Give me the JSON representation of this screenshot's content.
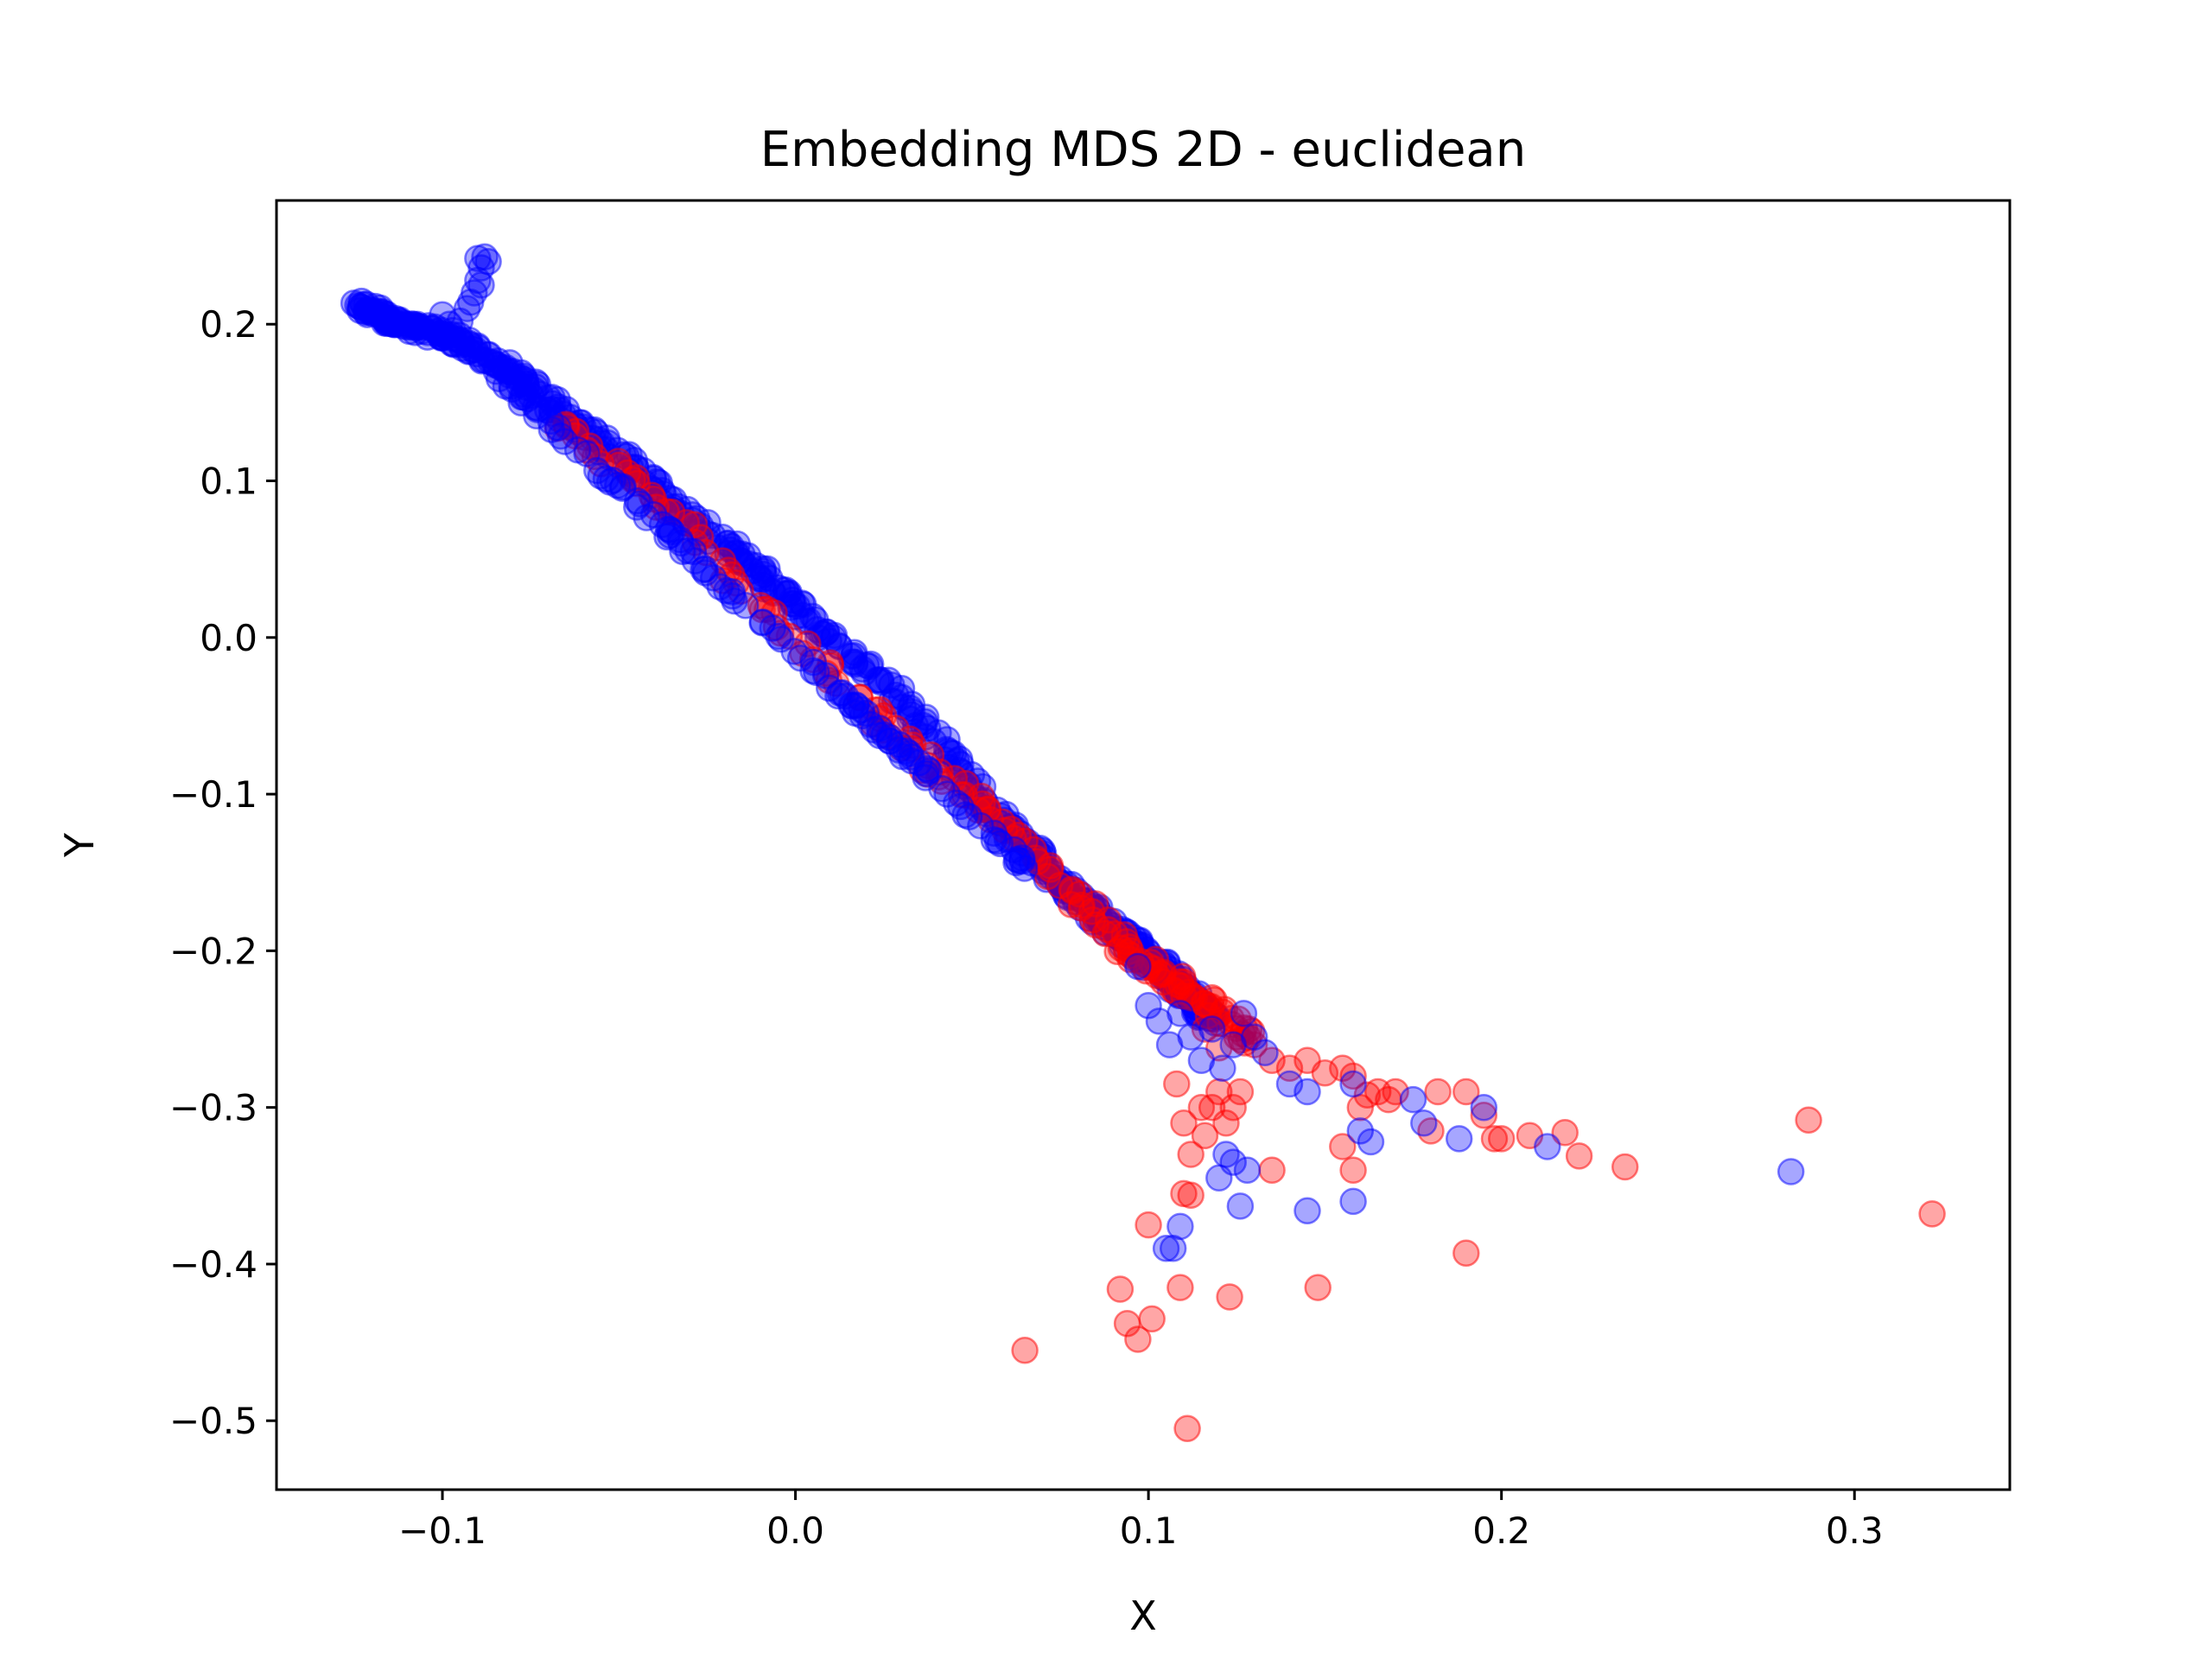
{
  "chart_data": {
    "type": "scatter",
    "title": "Embedding MDS 2D - euclidean",
    "xlabel": "X",
    "ylabel": "Y",
    "xlim": [
      -0.147,
      0.344
    ],
    "ylim": [
      -0.544,
      0.279
    ],
    "xticks": [
      -0.1,
      0.0,
      0.1,
      0.2,
      0.3
    ],
    "xtick_labels": [
      "−0.1",
      "0.0",
      "0.1",
      "0.2",
      "0.3"
    ],
    "yticks": [
      0.2,
      0.1,
      0.0,
      -0.1,
      -0.2,
      -0.3,
      -0.4,
      -0.5
    ],
    "ytick_labels": [
      "0.2",
      "0.1",
      "0.0",
      "−0.1",
      "−0.2",
      "−0.3",
      "−0.4",
      "−0.5"
    ],
    "grid": false,
    "series": [
      {
        "color": "#0000ff",
        "opacity": 0.35,
        "main_path": [
          [
            -0.124,
            0.212
          ],
          [
            -0.112,
            0.2
          ],
          [
            -0.095,
            0.19
          ],
          [
            -0.075,
            0.16
          ],
          [
            -0.05,
            0.115
          ],
          [
            -0.02,
            0.06
          ],
          [
            0.0,
            0.02
          ],
          [
            0.03,
            -0.04
          ],
          [
            0.055,
            -0.11
          ],
          [
            0.075,
            -0.155
          ],
          [
            0.09,
            -0.185
          ],
          [
            0.1,
            -0.205
          ],
          [
            0.11,
            -0.225
          ],
          [
            0.118,
            -0.245
          ]
        ],
        "points": [
          [
            -0.124,
            0.212
          ],
          [
            -0.12,
            0.209
          ],
          [
            -0.117,
            0.208
          ],
          [
            -0.113,
            0.201
          ],
          [
            -0.108,
            0.198
          ],
          [
            -0.104,
            0.199
          ],
          [
            -0.1,
            0.206
          ],
          [
            -0.098,
            0.2
          ],
          [
            -0.095,
            0.202
          ],
          [
            -0.093,
            0.21
          ],
          [
            -0.091,
            0.22
          ],
          [
            -0.09,
            0.228
          ],
          [
            -0.089,
            0.236
          ],
          [
            -0.09,
            0.242
          ],
          [
            -0.088,
            0.243
          ],
          [
            -0.087,
            0.24
          ],
          [
            -0.089,
            0.225
          ],
          [
            -0.092,
            0.214
          ],
          [
            -0.097,
            0.196
          ],
          [
            0.097,
            -0.21
          ],
          [
            0.1,
            -0.235
          ],
          [
            0.103,
            -0.245
          ],
          [
            0.106,
            -0.26
          ],
          [
            0.109,
            -0.24
          ],
          [
            0.112,
            -0.255
          ],
          [
            0.115,
            -0.27
          ],
          [
            0.118,
            -0.25
          ],
          [
            0.121,
            -0.275
          ],
          [
            0.124,
            -0.26
          ],
          [
            0.127,
            -0.24
          ],
          [
            0.13,
            -0.255
          ],
          [
            0.133,
            -0.265
          ],
          [
            0.12,
            -0.345
          ],
          [
            0.122,
            -0.33
          ],
          [
            0.124,
            -0.335
          ],
          [
            0.126,
            -0.363
          ],
          [
            0.128,
            -0.34
          ],
          [
            0.105,
            -0.39
          ],
          [
            0.107,
            -0.39
          ],
          [
            0.109,
            -0.376
          ],
          [
            0.14,
            -0.285
          ],
          [
            0.145,
            -0.29
          ],
          [
            0.145,
            -0.366
          ],
          [
            0.158,
            -0.36
          ],
          [
            0.158,
            -0.285
          ],
          [
            0.16,
            -0.315
          ],
          [
            0.163,
            -0.322
          ],
          [
            0.178,
            -0.31
          ],
          [
            0.175,
            -0.295
          ],
          [
            0.188,
            -0.32
          ],
          [
            0.195,
            -0.3
          ],
          [
            0.213,
            -0.325
          ],
          [
            0.282,
            -0.341
          ]
        ]
      },
      {
        "color": "#ff0000",
        "opacity": 0.35,
        "main_path": [
          [
            -0.065,
            0.136
          ],
          [
            -0.04,
            0.09
          ],
          [
            -0.01,
            0.018
          ],
          [
            0.02,
            -0.045
          ],
          [
            0.04,
            -0.085
          ],
          [
            0.06,
            -0.12
          ],
          [
            0.08,
            -0.17
          ],
          [
            0.095,
            -0.2
          ],
          [
            0.108,
            -0.22
          ],
          [
            0.12,
            -0.24
          ],
          [
            0.13,
            -0.26
          ]
        ],
        "points": [
          [
            -0.065,
            0.136
          ],
          [
            -0.05,
            0.11
          ],
          [
            -0.035,
            0.08
          ],
          [
            -0.018,
            0.04
          ],
          [
            -0.008,
            0.018
          ],
          [
            0.01,
            -0.018
          ],
          [
            0.025,
            -0.05
          ],
          [
            0.045,
            -0.09
          ],
          [
            0.065,
            -0.13
          ],
          [
            0.085,
            -0.17
          ],
          [
            0.095,
            -0.2
          ],
          [
            0.1,
            -0.21
          ],
          [
            0.104,
            -0.215
          ],
          [
            0.107,
            -0.225
          ],
          [
            0.11,
            -0.22
          ],
          [
            0.113,
            -0.23
          ],
          [
            0.116,
            -0.25
          ],
          [
            0.118,
            -0.23
          ],
          [
            0.12,
            -0.262
          ],
          [
            0.125,
            -0.255
          ],
          [
            0.13,
            -0.26
          ],
          [
            0.135,
            -0.27
          ],
          [
            0.14,
            -0.275
          ],
          [
            0.145,
            -0.27
          ],
          [
            0.15,
            -0.278
          ],
          [
            0.155,
            -0.275
          ],
          [
            0.158,
            -0.28
          ],
          [
            0.162,
            -0.292
          ],
          [
            0.165,
            -0.29
          ],
          [
            0.168,
            -0.295
          ],
          [
            0.17,
            -0.29
          ],
          [
            0.18,
            -0.315
          ],
          [
            0.182,
            -0.29
          ],
          [
            0.19,
            -0.29
          ],
          [
            0.195,
            -0.305
          ],
          [
            0.198,
            -0.32
          ],
          [
            0.2,
            -0.32
          ],
          [
            0.208,
            -0.318
          ],
          [
            0.218,
            -0.316
          ],
          [
            0.222,
            -0.331
          ],
          [
            0.235,
            -0.338
          ],
          [
            0.287,
            -0.308
          ],
          [
            0.322,
            -0.368
          ],
          [
            0.108,
            -0.285
          ],
          [
            0.11,
            -0.31
          ],
          [
            0.112,
            -0.33
          ],
          [
            0.115,
            -0.3
          ],
          [
            0.116,
            -0.318
          ],
          [
            0.118,
            -0.3
          ],
          [
            0.12,
            -0.29
          ],
          [
            0.122,
            -0.31
          ],
          [
            0.124,
            -0.3
          ],
          [
            0.126,
            -0.29
          ],
          [
            0.11,
            -0.355
          ],
          [
            0.112,
            -0.356
          ],
          [
            0.1,
            -0.375
          ],
          [
            0.092,
            -0.416
          ],
          [
            0.094,
            -0.438
          ],
          [
            0.097,
            -0.448
          ],
          [
            0.101,
            -0.435
          ],
          [
            0.109,
            -0.415
          ],
          [
            0.123,
            -0.421
          ],
          [
            0.065,
            -0.455
          ],
          [
            0.111,
            -0.505
          ],
          [
            0.135,
            -0.34
          ],
          [
            0.148,
            -0.415
          ],
          [
            0.155,
            -0.325
          ],
          [
            0.158,
            -0.34
          ],
          [
            0.16,
            -0.3
          ],
          [
            0.19,
            -0.393
          ]
        ]
      }
    ]
  }
}
